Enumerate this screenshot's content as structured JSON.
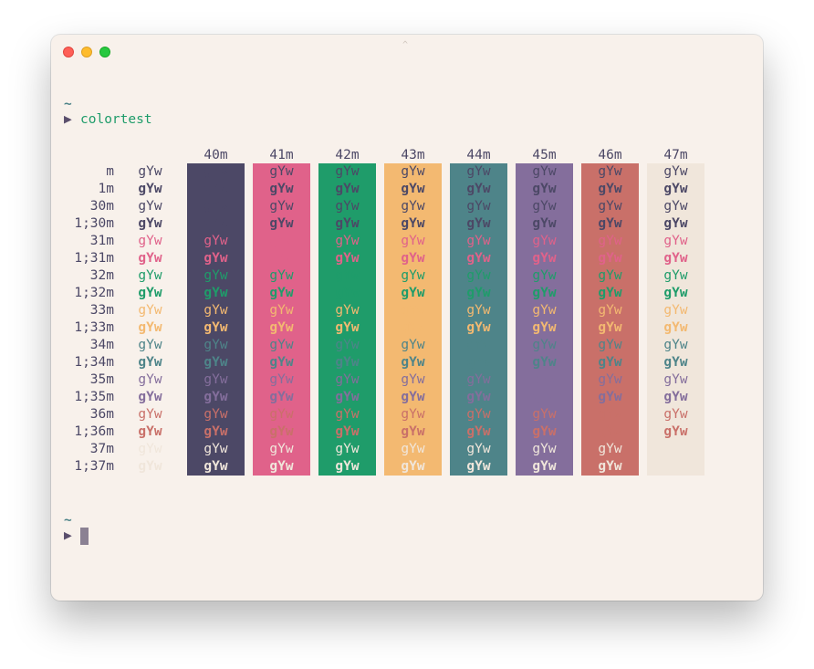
{
  "window": {
    "title_glyph": "^"
  },
  "colors": {
    "fg": "#4c4866",
    "bg": "#f8f1eb",
    "c0": "#4c4866",
    "c1": "#e0628a",
    "c2": "#1f9c6a",
    "c3": "#f3b971",
    "c4": "#4e8489",
    "c5": "#846e9c",
    "c6": "#c97069",
    "c7": "#f0e6db"
  },
  "terminal": {
    "prompt_tilde_1": "~",
    "prompt_arrow_1": "▶",
    "command": "colortest",
    "prompt_tilde_2": "~",
    "prompt_arrow_2": "▶"
  },
  "colortest": {
    "columns": [
      "40m",
      "41m",
      "42m",
      "43m",
      "44m",
      "45m",
      "46m",
      "47m"
    ],
    "sample": "gYw",
    "rows": [
      "m",
      "1m",
      "30m",
      "1;30m",
      "31m",
      "1;31m",
      "32m",
      "1;32m",
      "33m",
      "1;33m",
      "34m",
      "1;34m",
      "35m",
      "1;35m",
      "36m",
      "1;36m",
      "37m",
      "1;37m"
    ]
  }
}
